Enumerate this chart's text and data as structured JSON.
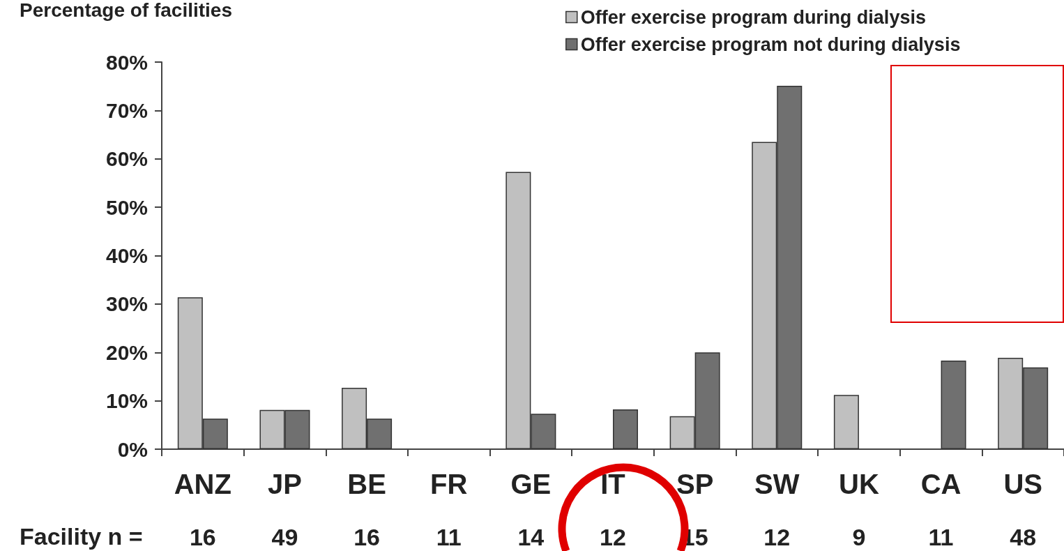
{
  "chart_data": {
    "type": "bar",
    "title": "Percentage of facilities",
    "categories": [
      "ANZ",
      "JP",
      "BE",
      "FR",
      "GE",
      "IT",
      "SP",
      "SW",
      "UK",
      "CA",
      "US"
    ],
    "series": [
      {
        "name": "Offer exercise program during dialysis",
        "color": "#c0c0c0",
        "values": [
          31.4,
          8.1,
          12.7,
          null,
          57.3,
          null,
          6.8,
          63.5,
          11.2,
          null,
          18.9
        ]
      },
      {
        "name": "Offer exercise program not during dialysis",
        "color": "#707070",
        "values": [
          6.3,
          8.1,
          6.3,
          null,
          7.3,
          8.2,
          20.0,
          75.1,
          null,
          18.3,
          16.9
        ]
      }
    ],
    "ylim": [
      0,
      80
    ],
    "yticks": [
      {
        "value": 0,
        "label": "0%"
      },
      {
        "value": 10,
        "label": "10%"
      },
      {
        "value": 20,
        "label": "20%"
      },
      {
        "value": 30,
        "label": "30%"
      },
      {
        "value": 40,
        "label": "40%"
      },
      {
        "value": 50,
        "label": "50%"
      },
      {
        "value": 60,
        "label": "60%"
      },
      {
        "value": 70,
        "label": "70%"
      },
      {
        "value": 80,
        "label": "80%"
      }
    ],
    "grid": false,
    "legend": "top",
    "annotations": [
      "Facility n =",
      "16",
      "49",
      "16",
      "11",
      "14",
      "12",
      "15",
      "12",
      "9",
      "11",
      "48"
    ]
  }
}
